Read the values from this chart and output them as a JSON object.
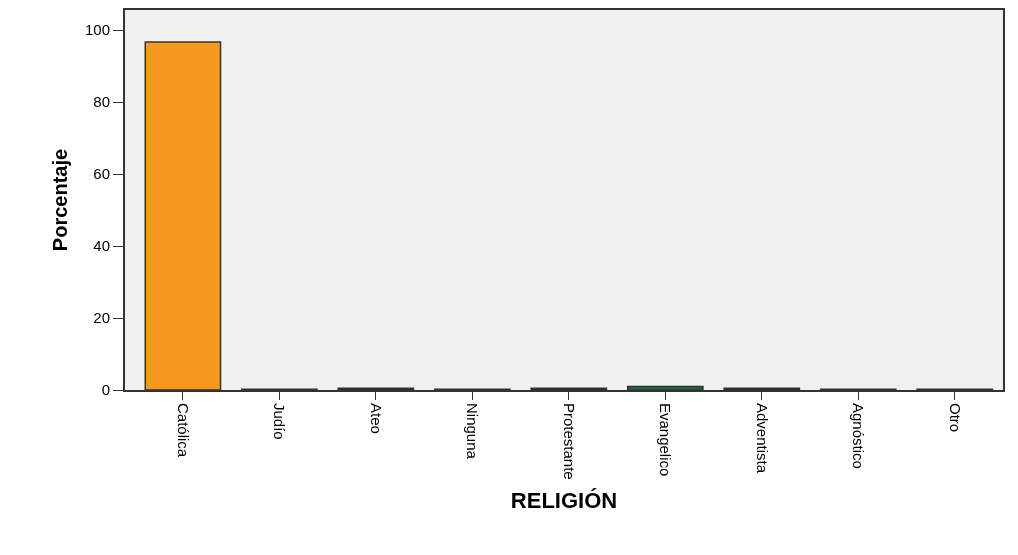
{
  "chart_data": {
    "type": "bar",
    "xlabel": "RELIGIÓN",
    "ylabel": "Porcentaje",
    "categories": [
      "Católica",
      "Judío",
      "Ateo",
      "Ninguna",
      "Protestante",
      "Evangelico",
      "Adventista",
      "Agnóstico",
      "Otro"
    ],
    "values": [
      96.7,
      0.2,
      0.5,
      0.2,
      0.5,
      1.0,
      0.5,
      0.2,
      0.2
    ],
    "colors": [
      "#f7991f",
      "#7a7a7a",
      "#1a1a1a",
      "#7a7a7a",
      "#1a1a1a",
      "#1e6b3a",
      "#1a1a1a",
      "#7a7a7a",
      "#7a7a7a"
    ],
    "ylim": [
      0,
      105.6
    ],
    "yticks": [
      0,
      20,
      40,
      60,
      80,
      100
    ],
    "grid": false
  }
}
